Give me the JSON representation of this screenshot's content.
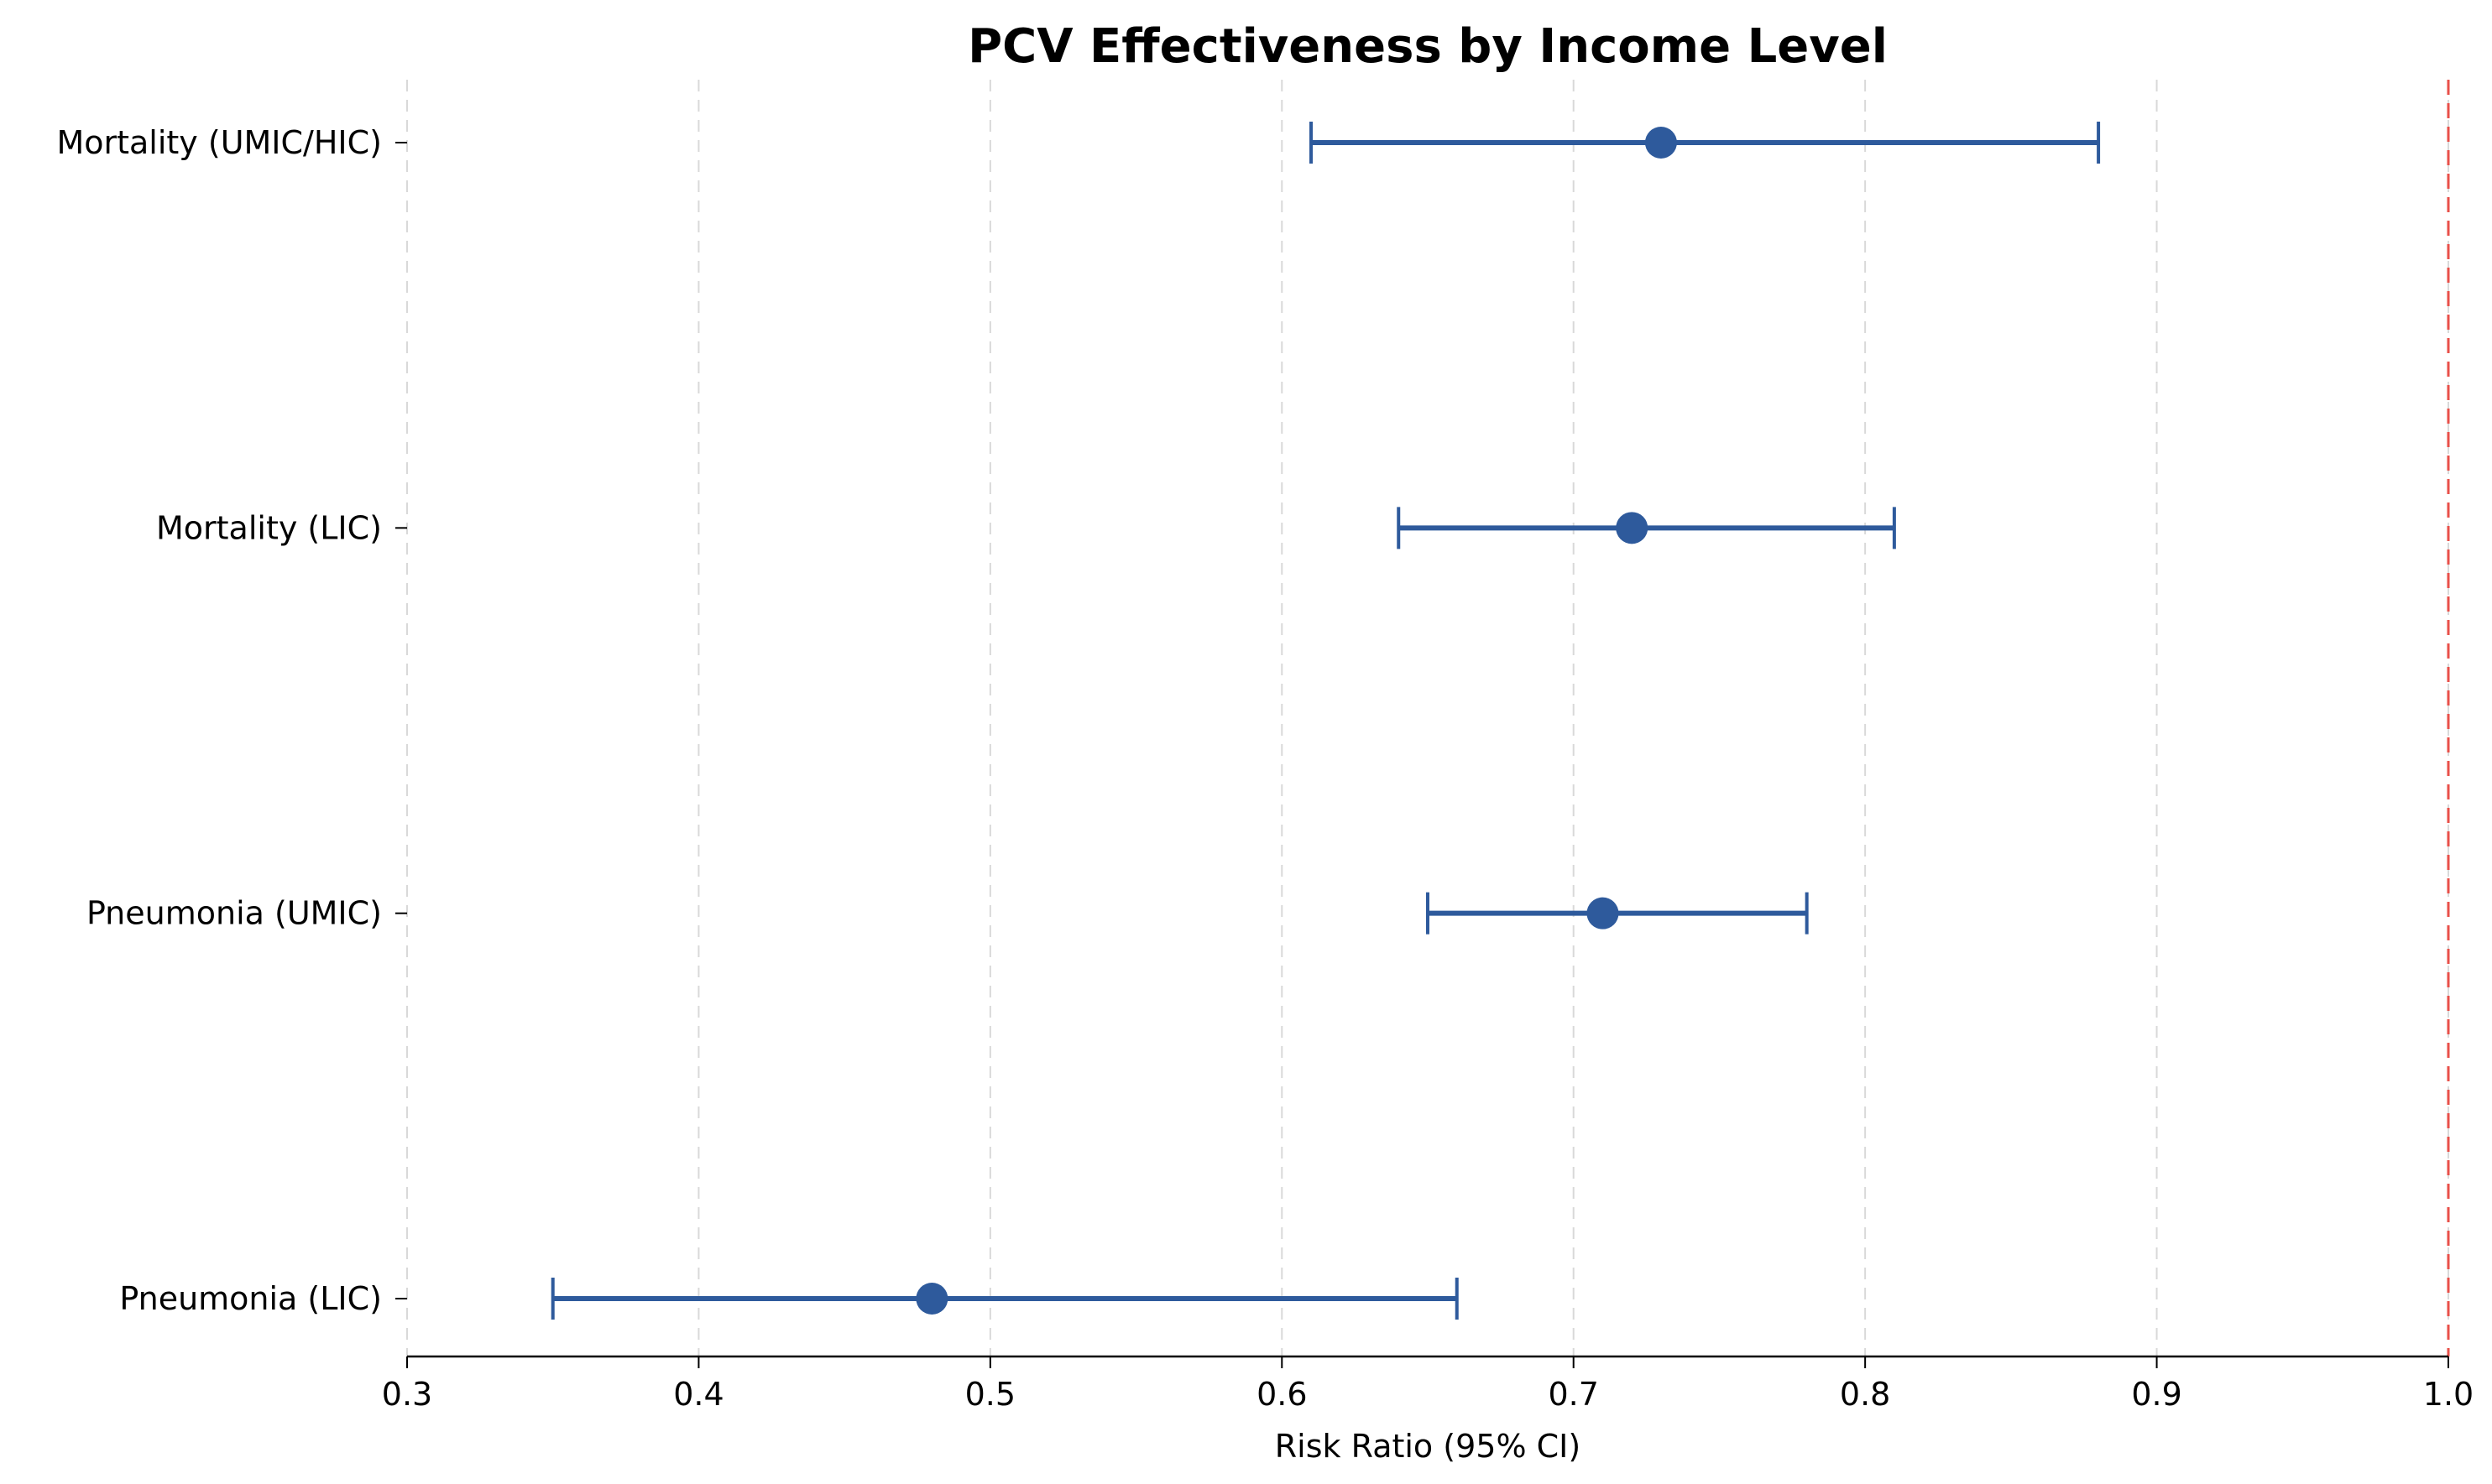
{
  "chart_data": {
    "type": "forest",
    "title": "PCV Effectiveness by Income Level",
    "xlabel": "Risk Ratio (95% CI)",
    "ylabel": "",
    "xlim": [
      0.3,
      1.0
    ],
    "xticks": [
      "0.3",
      "0.4",
      "0.5",
      "0.6",
      "0.7",
      "0.8",
      "0.9",
      "1.0"
    ],
    "grid": "vertical-dashed",
    "reference_line": {
      "x": 1.0,
      "color": "#e8504a"
    },
    "point_color": "#2e5a9c",
    "categories": [
      "Mortality (UMIC/HIC)",
      "Mortality (LIC)",
      "Pneumonia (UMIC)",
      "Pneumonia (LIC)"
    ],
    "estimates": [
      0.73,
      0.72,
      0.71,
      0.48
    ],
    "ci_lower": [
      0.61,
      0.64,
      0.65,
      0.35
    ],
    "ci_upper": [
      0.88,
      0.81,
      0.78,
      0.66
    ]
  }
}
